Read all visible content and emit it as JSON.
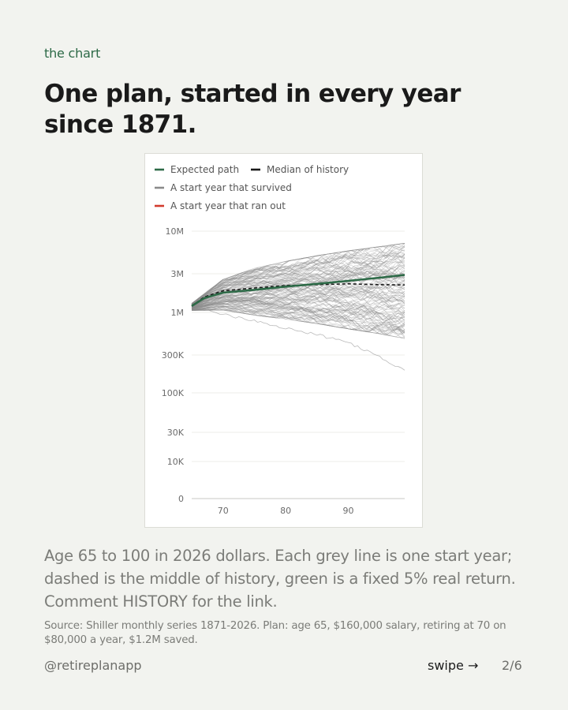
{
  "kicker": "the chart",
  "headline": "One plan, started in every year since 1871.",
  "caption": "Age 65 to 100 in 2026 dollars. Each grey line is one start year; dashed is the middle of history, green is a fixed 5% real return. Comment HISTORY for the link.",
  "source": "Source: Shiller monthly series 1871-2026. Plan: age 65, $160,000 salary, retiring at 70 on $80,000 a year, $1.2M saved.",
  "footer": {
    "handle": "@retireplanapp",
    "swipe": "swipe →",
    "page": "2/6"
  },
  "colors": {
    "expected": "#2d6a47",
    "median": "#1a1a1a",
    "survived": "#8a8a8a",
    "ran_out": "#d23b2d"
  },
  "chart_data": {
    "type": "line",
    "legend_placement": "top-left",
    "legend": [
      {
        "label": "Expected path",
        "style": "expected"
      },
      {
        "label": "Median of history",
        "style": "median"
      },
      {
        "label": "A start year that survived",
        "style": "survived"
      },
      {
        "label": "A start year that ran out",
        "style": "ran_out"
      }
    ],
    "x": {
      "range": [
        65,
        99
      ],
      "ticks": [
        70,
        80,
        90
      ],
      "tick_labels": [
        "70",
        "80",
        "90"
      ]
    },
    "y": {
      "scale": "log",
      "ticks": [
        10000000,
        3000000,
        1000000,
        300000,
        100000,
        30000,
        10000,
        0
      ],
      "tick_labels": [
        "10M",
        "3M",
        "1M",
        "300K",
        "100K",
        "30K",
        "10K",
        "0"
      ]
    },
    "grid": true,
    "expected_path": {
      "x": [
        65,
        67,
        70,
        75,
        80,
        85,
        90,
        95,
        99
      ],
      "y": [
        1200000,
        1500000,
        1750000,
        1900000,
        2080000,
        2250000,
        2450000,
        2680000,
        2900000
      ]
    },
    "median_of_history": {
      "x": [
        65,
        67,
        70,
        75,
        80,
        85,
        90,
        95,
        99
      ],
      "y": [
        1200000,
        1550000,
        1850000,
        2000000,
        2150000,
        2200000,
        2250000,
        2200000,
        2180000
      ]
    },
    "history_spread": {
      "x": [
        65,
        70,
        75,
        80,
        85,
        90,
        95,
        99
      ],
      "upper": [
        1300000,
        2600000,
        3600000,
        4400000,
        5200000,
        6000000,
        6800000,
        7500000
      ],
      "lower": [
        1050000,
        1050000,
        900000,
        800000,
        700000,
        600000,
        520000,
        450000
      ]
    },
    "lowest_start_year": {
      "x": [
        65,
        70,
        75,
        80,
        85,
        90,
        95,
        99
      ],
      "y": [
        1200000,
        950000,
        800000,
        640000,
        530000,
        430000,
        280000,
        190000
      ]
    },
    "start_year_count": 130
  }
}
